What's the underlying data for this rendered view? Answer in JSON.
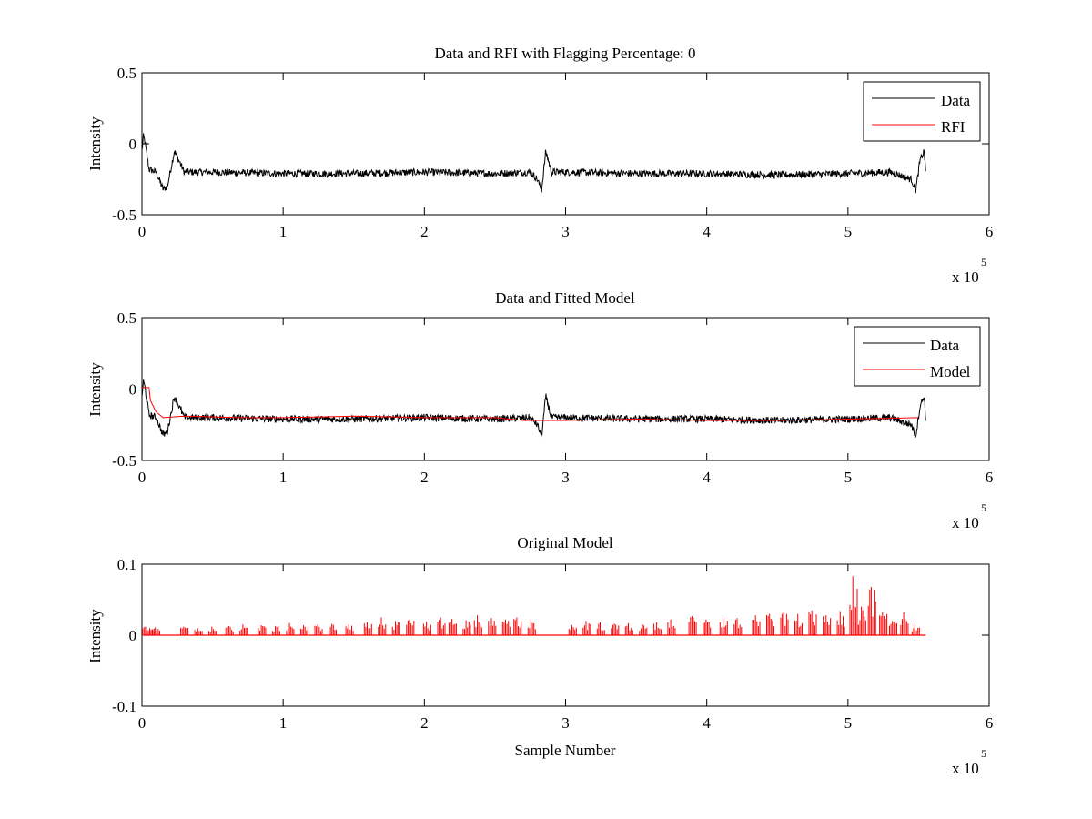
{
  "chart_data": [
    {
      "type": "line",
      "title": "Data and RFI with Flagging Percentage: 0",
      "xlabel": "",
      "ylabel": "Intensity",
      "xlim": [
        0,
        6
      ],
      "ylim": [
        -0.5,
        0.5
      ],
      "x_ticks": [
        "0",
        "1",
        "2",
        "3",
        "4",
        "5",
        "6"
      ],
      "y_ticks": [
        "0.5",
        "0",
        "-0.5"
      ],
      "x_multiplier": {
        "base": "x 10",
        "exponent": "5"
      },
      "legend": {
        "position": "top-right",
        "entries": [
          {
            "name": "Data",
            "color": "#000000"
          },
          {
            "name": "RFI",
            "color": "#ff0000"
          }
        ]
      },
      "series": [
        {
          "name": "Data",
          "color": "#000000",
          "x": [
            0,
            0.01,
            0.02,
            0.05,
            0.1,
            0.15,
            0.18,
            0.2,
            0.23,
            0.3,
            0.5,
            1,
            1.5,
            2,
            2.5,
            2.75,
            2.8,
            2.83,
            2.86,
            2.9,
            3,
            3.5,
            4,
            4.5,
            5,
            5.3,
            5.45,
            5.48,
            5.51,
            5.54,
            5.55
          ],
          "y": [
            -0.05,
            0.05,
            0.02,
            -0.18,
            -0.2,
            -0.32,
            -0.3,
            -0.2,
            -0.05,
            -0.2,
            -0.2,
            -0.21,
            -0.21,
            -0.2,
            -0.21,
            -0.2,
            -0.25,
            -0.33,
            -0.05,
            -0.2,
            -0.2,
            -0.21,
            -0.21,
            -0.22,
            -0.21,
            -0.2,
            -0.25,
            -0.33,
            -0.12,
            -0.05,
            -0.2
          ],
          "noise_amplitude": 0.025
        },
        {
          "name": "RFI",
          "color": "#ff0000",
          "x": [],
          "y": []
        }
      ]
    },
    {
      "type": "line",
      "title": "Data and Fitted Model",
      "xlabel": "",
      "ylabel": "Intensity",
      "xlim": [
        0,
        6
      ],
      "ylim": [
        -0.5,
        0.5
      ],
      "x_ticks": [
        "0",
        "1",
        "2",
        "3",
        "4",
        "5",
        "6"
      ],
      "y_ticks": [
        "0.5",
        "0",
        "-0.5"
      ],
      "x_multiplier": {
        "base": "x 10",
        "exponent": "5"
      },
      "legend": {
        "position": "top-right",
        "entries": [
          {
            "name": "Data",
            "color": "#000000"
          },
          {
            "name": "Model",
            "color": "#ff0000"
          }
        ]
      },
      "series": [
        {
          "name": "Data",
          "color": "#000000",
          "x": [
            0,
            0.01,
            0.02,
            0.05,
            0.1,
            0.15,
            0.18,
            0.2,
            0.23,
            0.3,
            0.5,
            1,
            1.5,
            2,
            2.5,
            2.75,
            2.8,
            2.83,
            2.86,
            2.9,
            3,
            3.5,
            4,
            4.5,
            5,
            5.3,
            5.45,
            5.48,
            5.51,
            5.54,
            5.55
          ],
          "y": [
            -0.05,
            0.05,
            0.02,
            -0.18,
            -0.2,
            -0.32,
            -0.3,
            -0.2,
            -0.05,
            -0.2,
            -0.2,
            -0.21,
            -0.21,
            -0.2,
            -0.21,
            -0.2,
            -0.25,
            -0.33,
            -0.05,
            -0.2,
            -0.2,
            -0.21,
            -0.21,
            -0.22,
            -0.21,
            -0.2,
            -0.25,
            -0.33,
            -0.12,
            -0.05,
            -0.2
          ],
          "noise_amplitude": 0.025
        },
        {
          "name": "Model",
          "color": "#ff0000",
          "x": [
            0,
            0.05,
            0.06,
            0.08,
            0.1,
            0.15,
            0.3,
            0.7,
            1,
            1.5,
            2,
            2.5,
            2.7,
            3,
            3.5,
            4,
            4.5,
            5,
            5.5
          ],
          "y": [
            0.01,
            0.01,
            -0.08,
            -0.12,
            -0.16,
            -0.2,
            -0.19,
            -0.2,
            -0.2,
            -0.19,
            -0.2,
            -0.2,
            -0.22,
            -0.22,
            -0.21,
            -0.22,
            -0.22,
            -0.21,
            -0.2
          ]
        }
      ]
    },
    {
      "type": "line",
      "title": "Original Model",
      "xlabel": "Sample Number",
      "ylabel": "Intensity",
      "xlim": [
        0,
        6
      ],
      "ylim": [
        -0.1,
        0.1
      ],
      "x_ticks": [
        "0",
        "1",
        "2",
        "3",
        "4",
        "5",
        "6"
      ],
      "y_ticks": [
        "0.1",
        "0",
        "-0.1"
      ],
      "x_multiplier": {
        "base": "x 10",
        "exponent": "5"
      },
      "series": [
        {
          "name": "Model",
          "color": "#ff0000",
          "baseline": 0,
          "x_end": 5.55,
          "spikes": [
            {
              "x": 0.03,
              "y": 0.012
            },
            {
              "x": 0.06,
              "y": 0.01
            },
            {
              "x": 0.1,
              "y": 0.011
            },
            {
              "x": 0.3,
              "y": 0.012
            },
            {
              "x": 0.4,
              "y": 0.01
            },
            {
              "x": 0.5,
              "y": 0.012
            },
            {
              "x": 0.62,
              "y": 0.013
            },
            {
              "x": 0.72,
              "y": 0.015
            },
            {
              "x": 0.85,
              "y": 0.014
            },
            {
              "x": 0.95,
              "y": 0.013
            },
            {
              "x": 1.05,
              "y": 0.017
            },
            {
              "x": 1.15,
              "y": 0.014
            },
            {
              "x": 1.25,
              "y": 0.015
            },
            {
              "x": 1.35,
              "y": 0.016
            },
            {
              "x": 1.47,
              "y": 0.015
            },
            {
              "x": 1.6,
              "y": 0.018
            },
            {
              "x": 1.7,
              "y": 0.025
            },
            {
              "x": 1.8,
              "y": 0.02
            },
            {
              "x": 1.9,
              "y": 0.022
            },
            {
              "x": 2.02,
              "y": 0.019
            },
            {
              "x": 2.12,
              "y": 0.025
            },
            {
              "x": 2.2,
              "y": 0.023
            },
            {
              "x": 2.3,
              "y": 0.021
            },
            {
              "x": 2.38,
              "y": 0.028
            },
            {
              "x": 2.48,
              "y": 0.024
            },
            {
              "x": 2.58,
              "y": 0.022
            },
            {
              "x": 2.66,
              "y": 0.025
            },
            {
              "x": 2.76,
              "y": 0.022
            },
            {
              "x": 3.05,
              "y": 0.014
            },
            {
              "x": 3.15,
              "y": 0.02
            },
            {
              "x": 3.25,
              "y": 0.018
            },
            {
              "x": 3.35,
              "y": 0.016
            },
            {
              "x": 3.45,
              "y": 0.017
            },
            {
              "x": 3.55,
              "y": 0.015
            },
            {
              "x": 3.65,
              "y": 0.018
            },
            {
              "x": 3.75,
              "y": 0.022
            },
            {
              "x": 3.9,
              "y": 0.027
            },
            {
              "x": 4.0,
              "y": 0.022
            },
            {
              "x": 4.12,
              "y": 0.025
            },
            {
              "x": 4.22,
              "y": 0.024
            },
            {
              "x": 4.35,
              "y": 0.028
            },
            {
              "x": 4.45,
              "y": 0.03
            },
            {
              "x": 4.55,
              "y": 0.032
            },
            {
              "x": 4.65,
              "y": 0.03
            },
            {
              "x": 4.75,
              "y": 0.035
            },
            {
              "x": 4.85,
              "y": 0.028
            },
            {
              "x": 4.95,
              "y": 0.034
            },
            {
              "x": 5.04,
              "y": 0.083
            },
            {
              "x": 5.1,
              "y": 0.04
            },
            {
              "x": 5.17,
              "y": 0.068
            },
            {
              "x": 5.25,
              "y": 0.032
            },
            {
              "x": 5.32,
              "y": 0.02
            },
            {
              "x": 5.4,
              "y": 0.032
            },
            {
              "x": 5.48,
              "y": 0.015
            }
          ]
        }
      ]
    }
  ]
}
